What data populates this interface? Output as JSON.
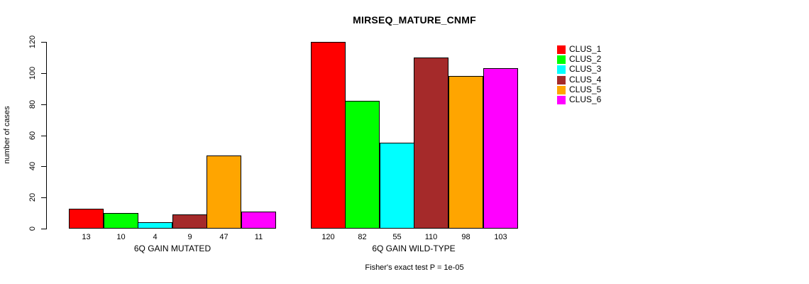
{
  "chart_data": {
    "type": "bar",
    "title": "MIRSEQ_MATURE_CNMF",
    "ylabel": "number of cases",
    "xlabel": "",
    "ylim": [
      0,
      120
    ],
    "yticks": [
      0,
      20,
      40,
      60,
      80,
      100,
      120
    ],
    "grid": false,
    "categories": [
      "CLUS_1",
      "CLUS_2",
      "CLUS_3",
      "CLUS_4",
      "CLUS_5",
      "CLUS_6"
    ],
    "cluster_colors": [
      "#ff0000",
      "#00ff00",
      "#00ffff",
      "#a52a2a",
      "#ffa500",
      "#ff00ff"
    ],
    "groups": [
      {
        "label": "6Q GAIN MUTATED",
        "values": [
          13,
          10,
          4,
          9,
          47,
          11
        ]
      },
      {
        "label": "6Q GAIN WILD-TYPE",
        "values": [
          120,
          82,
          55,
          110,
          98,
          103
        ]
      }
    ],
    "legend": {
      "position": "right",
      "entries": [
        "CLUS_1",
        "CLUS_2",
        "CLUS_3",
        "CLUS_4",
        "CLUS_5",
        "CLUS_6"
      ]
    },
    "footnote": "Fisher's exact test P = 1e-05"
  }
}
